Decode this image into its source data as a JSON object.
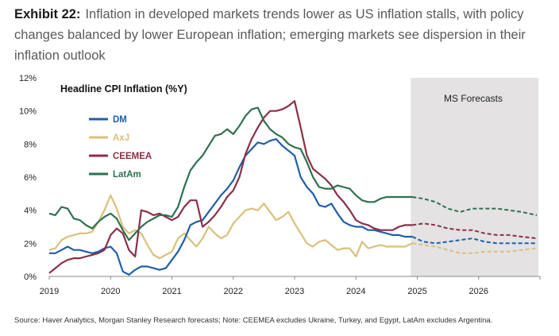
{
  "header": {
    "exhibit": "Exhibit 22:",
    "title": "Inflation in developed markets trends lower as US inflation stalls, with policy changes balanced by lower European inflation; emerging markets see dispersion in their inflation outlook"
  },
  "source": "Source: Haver Analytics, Morgan Stanley Research forecasts; Note: CEEMEA excludes Ukraine, Turkey, and Egypt, LatAm excludes Argentina.",
  "chart_data": {
    "type": "line",
    "title": "Headline CPI Inflation (%Y)",
    "forecast_label": "MS Forecasts",
    "forecast_start": 2024.92,
    "x_ticks": [
      "2019",
      "2020",
      "2021",
      "2022",
      "2023",
      "2024",
      "2025",
      "2026"
    ],
    "y_ticks": [
      "0%",
      "2%",
      "4%",
      "6%",
      "8%",
      "10%",
      "12%"
    ],
    "xlim": [
      2019,
      2027
    ],
    "ylim": [
      0,
      12
    ],
    "grid": false,
    "legend_position": "upper-left",
    "series": [
      {
        "name": "DM",
        "color": "#1f5fa8",
        "x": [
          2019.0,
          2019.1,
          2019.2,
          2019.3,
          2019.4,
          2019.5,
          2019.6,
          2019.7,
          2019.8,
          2019.9,
          2020.0,
          2020.1,
          2020.2,
          2020.3,
          2020.4,
          2020.5,
          2020.6,
          2020.7,
          2020.8,
          2020.9,
          2021.0,
          2021.1,
          2021.2,
          2021.3,
          2021.4,
          2021.5,
          2021.6,
          2021.7,
          2021.8,
          2021.9,
          2022.0,
          2022.1,
          2022.2,
          2022.3,
          2022.4,
          2022.5,
          2022.6,
          2022.7,
          2022.8,
          2022.9,
          2023.0,
          2023.1,
          2023.2,
          2023.3,
          2023.4,
          2023.5,
          2023.6,
          2023.7,
          2023.8,
          2023.9,
          2024.0,
          2024.1,
          2024.2,
          2024.3,
          2024.4,
          2024.5,
          2024.6,
          2024.7,
          2024.8,
          2024.92
        ],
        "values": [
          1.4,
          1.4,
          1.6,
          1.8,
          1.6,
          1.6,
          1.5,
          1.4,
          1.5,
          1.7,
          1.8,
          1.4,
          0.3,
          0.1,
          0.4,
          0.6,
          0.6,
          0.5,
          0.4,
          0.5,
          1.0,
          1.5,
          2.2,
          3.1,
          3.3,
          3.4,
          3.9,
          4.4,
          4.9,
          5.3,
          5.8,
          6.6,
          7.3,
          7.7,
          8.1,
          8.0,
          8.2,
          8.3,
          7.9,
          7.6,
          7.3,
          6.0,
          5.4,
          5.0,
          4.3,
          4.2,
          4.4,
          3.8,
          3.3,
          3.1,
          3.0,
          3.0,
          2.8,
          2.8,
          2.7,
          2.6,
          2.5,
          2.5,
          2.4,
          2.4
        ]
      },
      {
        "name": "AxJ",
        "color": "#d9c07c",
        "x": [
          2019.0,
          2019.1,
          2019.2,
          2019.3,
          2019.4,
          2019.5,
          2019.6,
          2019.7,
          2019.8,
          2019.9,
          2020.0,
          2020.1,
          2020.2,
          2020.3,
          2020.4,
          2020.5,
          2020.6,
          2020.7,
          2020.8,
          2020.9,
          2021.0,
          2021.1,
          2021.2,
          2021.3,
          2021.4,
          2021.5,
          2021.6,
          2021.7,
          2021.8,
          2021.9,
          2022.0,
          2022.1,
          2022.2,
          2022.3,
          2022.4,
          2022.5,
          2022.6,
          2022.7,
          2022.8,
          2022.9,
          2023.0,
          2023.1,
          2023.2,
          2023.3,
          2023.4,
          2023.5,
          2023.6,
          2023.7,
          2023.8,
          2023.9,
          2024.0,
          2024.1,
          2024.2,
          2024.3,
          2024.4,
          2024.5,
          2024.6,
          2024.7,
          2024.8,
          2024.92
        ],
        "values": [
          1.6,
          1.7,
          2.2,
          2.4,
          2.5,
          2.6,
          2.6,
          2.7,
          3.3,
          4.0,
          4.9,
          4.1,
          3.0,
          2.6,
          2.8,
          2.6,
          1.9,
          1.3,
          1.1,
          1.3,
          1.5,
          2.3,
          2.6,
          2.2,
          1.8,
          2.3,
          3.0,
          2.6,
          2.3,
          2.5,
          3.2,
          3.6,
          4.0,
          4.1,
          4.0,
          4.4,
          3.9,
          3.4,
          3.6,
          3.9,
          3.2,
          2.6,
          2.0,
          1.8,
          2.1,
          2.2,
          1.9,
          1.6,
          1.7,
          1.7,
          1.2,
          2.1,
          1.7,
          1.8,
          1.9,
          1.8,
          1.8,
          1.8,
          1.8,
          2.0
        ]
      },
      {
        "name": "CEEMEA",
        "color": "#8b2f46",
        "x": [
          2019.0,
          2019.1,
          2019.2,
          2019.3,
          2019.4,
          2019.5,
          2019.6,
          2019.7,
          2019.8,
          2019.9,
          2020.0,
          2020.1,
          2020.2,
          2020.3,
          2020.4,
          2020.5,
          2020.6,
          2020.7,
          2020.8,
          2020.9,
          2021.0,
          2021.1,
          2021.2,
          2021.3,
          2021.4,
          2021.5,
          2021.6,
          2021.7,
          2021.8,
          2021.9,
          2022.0,
          2022.1,
          2022.2,
          2022.3,
          2022.4,
          2022.5,
          2022.6,
          2022.7,
          2022.8,
          2022.9,
          2023.0,
          2023.1,
          2023.2,
          2023.3,
          2023.4,
          2023.5,
          2023.6,
          2023.7,
          2023.8,
          2023.9,
          2024.0,
          2024.1,
          2024.2,
          2024.3,
          2024.4,
          2024.5,
          2024.6,
          2024.7,
          2024.8,
          2024.92
        ],
        "values": [
          0.2,
          0.5,
          0.8,
          1.0,
          1.1,
          1.1,
          1.2,
          1.3,
          1.4,
          1.6,
          2.5,
          2.9,
          2.6,
          1.6,
          1.2,
          4.0,
          3.9,
          3.7,
          3.8,
          3.6,
          3.4,
          3.6,
          4.2,
          4.6,
          4.6,
          3.0,
          3.3,
          3.7,
          4.2,
          4.8,
          5.2,
          6.0,
          7.4,
          8.3,
          9.0,
          9.6,
          10.0,
          10.0,
          10.1,
          10.3,
          10.6,
          9.0,
          7.3,
          6.5,
          6.2,
          5.9,
          5.5,
          4.9,
          4.5,
          4.0,
          3.4,
          3.2,
          3.1,
          2.9,
          2.8,
          2.8,
          2.8,
          3.0,
          3.1,
          3.1
        ]
      },
      {
        "name": "LatAm",
        "color": "#2e7150",
        "x": [
          2019.0,
          2019.1,
          2019.2,
          2019.3,
          2019.4,
          2019.5,
          2019.6,
          2019.7,
          2019.8,
          2019.9,
          2020.0,
          2020.1,
          2020.2,
          2020.3,
          2020.4,
          2020.5,
          2020.6,
          2020.7,
          2020.8,
          2020.9,
          2021.0,
          2021.1,
          2021.2,
          2021.3,
          2021.4,
          2021.5,
          2021.6,
          2021.7,
          2021.8,
          2021.9,
          2022.0,
          2022.1,
          2022.2,
          2022.3,
          2022.4,
          2022.5,
          2022.6,
          2022.7,
          2022.8,
          2022.9,
          2023.0,
          2023.1,
          2023.2,
          2023.3,
          2023.4,
          2023.5,
          2023.6,
          2023.7,
          2023.8,
          2023.9,
          2024.0,
          2024.1,
          2024.2,
          2024.3,
          2024.4,
          2024.5,
          2024.6,
          2024.7,
          2024.8,
          2024.92
        ],
        "values": [
          3.8,
          3.7,
          4.2,
          4.1,
          3.5,
          3.4,
          3.1,
          2.9,
          3.3,
          3.6,
          3.8,
          3.5,
          2.8,
          2.2,
          2.6,
          3.0,
          3.3,
          3.5,
          3.7,
          3.7,
          3.6,
          4.2,
          5.4,
          6.4,
          6.9,
          7.3,
          7.9,
          8.5,
          8.6,
          8.9,
          8.6,
          9.1,
          9.7,
          10.1,
          10.2,
          9.4,
          8.9,
          8.6,
          8.4,
          8.0,
          7.8,
          7.7,
          6.9,
          6.0,
          5.4,
          5.3,
          5.3,
          5.5,
          5.4,
          5.3,
          4.9,
          4.6,
          4.5,
          4.5,
          4.7,
          4.8,
          4.8,
          4.8,
          4.8,
          4.8
        ]
      }
    ],
    "forecast_series": [
      {
        "name": "DM",
        "x": [
          2024.92,
          2025.1,
          2025.3,
          2025.5,
          2025.7,
          2025.9,
          2026.1,
          2026.3,
          2026.5,
          2026.7,
          2026.95
        ],
        "values": [
          2.4,
          2.1,
          2.0,
          2.1,
          2.2,
          2.3,
          2.1,
          2.0,
          2.0,
          2.0,
          2.0
        ]
      },
      {
        "name": "AxJ",
        "x": [
          2024.92,
          2025.1,
          2025.3,
          2025.5,
          2025.7,
          2025.9,
          2026.1,
          2026.3,
          2026.5,
          2026.7,
          2026.95
        ],
        "values": [
          2.0,
          1.9,
          1.8,
          1.6,
          1.4,
          1.4,
          1.5,
          1.5,
          1.5,
          1.6,
          1.7
        ]
      },
      {
        "name": "CEEMEA",
        "x": [
          2024.92,
          2025.1,
          2025.3,
          2025.5,
          2025.7,
          2025.9,
          2026.1,
          2026.3,
          2026.5,
          2026.7,
          2026.95
        ],
        "values": [
          3.1,
          3.2,
          3.1,
          2.9,
          2.8,
          2.8,
          2.6,
          2.5,
          2.5,
          2.4,
          2.3
        ]
      },
      {
        "name": "LatAm",
        "x": [
          2024.92,
          2025.1,
          2025.3,
          2025.5,
          2025.7,
          2025.9,
          2026.1,
          2026.3,
          2026.5,
          2026.7,
          2026.95
        ],
        "values": [
          4.8,
          4.7,
          4.5,
          4.1,
          3.9,
          4.1,
          4.1,
          4.1,
          4.0,
          3.9,
          3.7
        ]
      }
    ]
  }
}
